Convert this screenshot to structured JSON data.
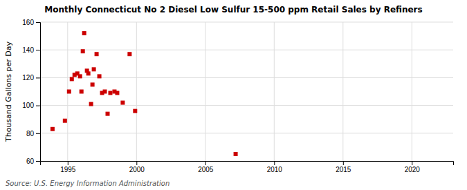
{
  "chart_data": {
    "type": "scatter",
    "title": "Monthly Connecticut No 2 Diesel Low Sulfur 15-500 ppm Retail Sales by Refiners",
    "ylabel": "Thousand Gallons per Day",
    "annotation": "Source: U.S. Energy Information Administration",
    "color": "#cc0000",
    "marker": "square",
    "grid": true,
    "xlim": [
      1993.0,
      2023.0
    ],
    "ylim": [
      60,
      160
    ],
    "xticks": [
      1995,
      2000,
      2005,
      2010,
      2015,
      2020
    ],
    "yticks": [
      60,
      80,
      100,
      120,
      140,
      160
    ],
    "x": [
      1993.9,
      1994.8,
      1995.1,
      1995.3,
      1995.5,
      1995.7,
      1995.9,
      1996.0,
      1996.1,
      1996.2,
      1996.4,
      1996.5,
      1996.7,
      1996.8,
      1996.9,
      1997.1,
      1997.3,
      1997.5,
      1997.7,
      1997.9,
      1998.1,
      1998.4,
      1998.6,
      1999.0,
      1999.5,
      1999.9,
      2007.2
    ],
    "values": [
      83,
      89,
      110,
      119,
      122,
      123,
      121,
      110,
      139,
      152,
      125,
      123,
      101,
      115,
      126,
      137,
      121,
      109,
      110,
      94,
      109,
      110,
      109,
      102,
      137,
      96,
      65
    ]
  }
}
